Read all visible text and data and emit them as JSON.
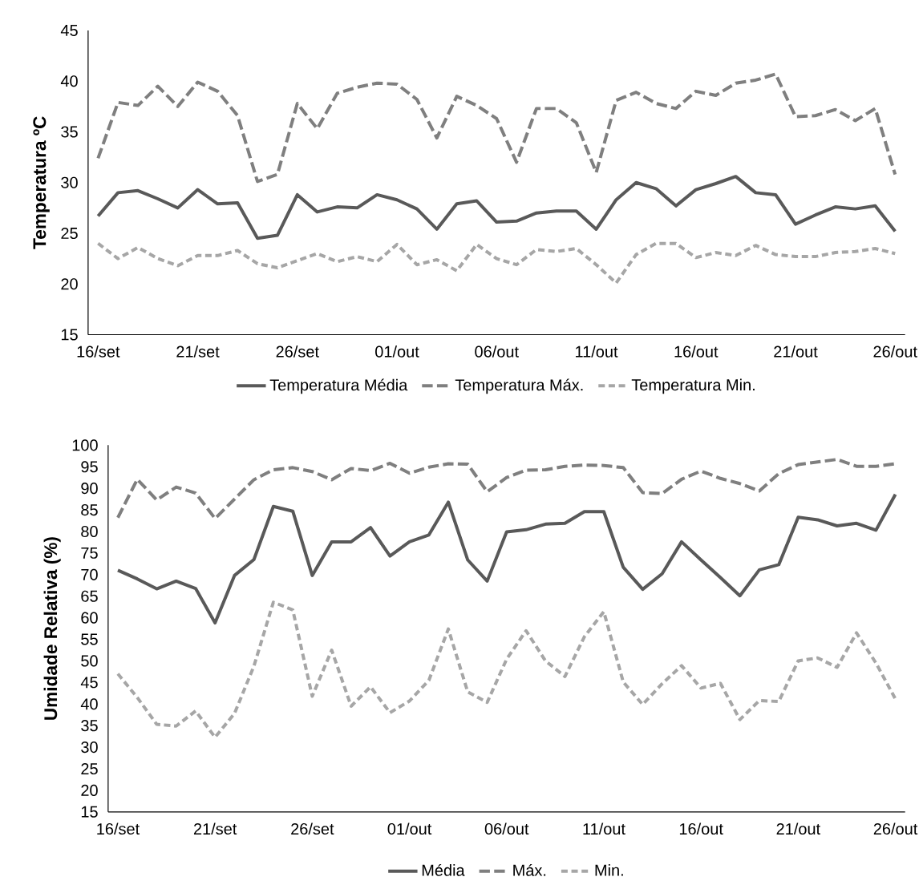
{
  "chart_data": [
    {
      "type": "line",
      "ylabel": "Temperatura ºC",
      "categories": [
        "16/set",
        null,
        null,
        null,
        null,
        "21/set",
        null,
        null,
        null,
        null,
        "26/set",
        null,
        null,
        null,
        null,
        "01/out",
        null,
        null,
        null,
        null,
        "06/out",
        null,
        null,
        null,
        null,
        "11/out",
        null,
        null,
        null,
        null,
        "16/out",
        null,
        null,
        null,
        null,
        "21/out",
        null,
        null,
        null,
        null,
        "26/out"
      ],
      "series": [
        {
          "name": "Temperatura  Média",
          "color": "#595959",
          "line_style": "solid",
          "values": [
            26.7,
            29.0,
            29.2,
            28.4,
            27.5,
            29.3,
            27.9,
            28.0,
            24.5,
            24.8,
            28.8,
            27.1,
            27.6,
            27.5,
            28.8,
            28.3,
            27.4,
            25.4,
            27.9,
            28.2,
            26.1,
            26.2,
            27.0,
            27.2,
            27.2,
            25.4,
            28.3,
            30.0,
            29.4,
            27.7,
            29.3,
            29.9,
            30.6,
            29.0,
            28.8,
            25.9,
            26.8,
            27.6,
            27.4,
            27.7,
            25.2
          ]
        },
        {
          "name": "Temperatura  Máx.",
          "color": "#7f7f7f",
          "line_style": "dashed",
          "values": [
            32.4,
            37.9,
            37.6,
            39.5,
            37.5,
            39.9,
            39.0,
            36.6,
            30.1,
            30.8,
            37.8,
            35.3,
            38.8,
            39.4,
            39.8,
            39.7,
            38.2,
            34.4,
            38.5,
            37.6,
            36.3,
            32.0,
            37.3,
            37.3,
            35.9,
            31.0,
            38.1,
            38.9,
            37.8,
            37.3,
            39.0,
            38.6,
            39.8,
            40.1,
            40.7,
            36.5,
            36.6,
            37.2,
            36.1,
            37.3,
            30.8
          ]
        },
        {
          "name": "Temperatura  Min.",
          "color": "#a6a6a6",
          "line_style": "dotted",
          "values": [
            24.0,
            22.5,
            23.6,
            22.5,
            21.8,
            22.8,
            22.8,
            23.3,
            22.0,
            21.6,
            22.3,
            23.0,
            22.2,
            22.7,
            22.2,
            23.9,
            21.9,
            22.4,
            21.3,
            23.9,
            22.5,
            21.9,
            23.4,
            23.2,
            23.5,
            21.9,
            20.1,
            22.9,
            24.0,
            24.0,
            22.6,
            23.1,
            22.8,
            23.8,
            22.9,
            22.7,
            22.7,
            23.1,
            23.2,
            23.5,
            23.0
          ]
        }
      ],
      "ylim": [
        15,
        45
      ],
      "yticks": [
        15,
        20,
        25,
        30,
        35,
        40,
        45
      ],
      "legend": "bottom",
      "marker": "none"
    },
    {
      "type": "line",
      "ylabel": "Umidade Relativa (%)",
      "categories": [
        "16/set",
        null,
        null,
        null,
        null,
        "21/set",
        null,
        null,
        null,
        null,
        "26/set",
        null,
        null,
        null,
        null,
        "01/out",
        null,
        null,
        null,
        null,
        "06/out",
        null,
        null,
        null,
        null,
        "11/out",
        null,
        null,
        null,
        null,
        "16/out",
        null,
        null,
        null,
        null,
        "21/out",
        null,
        null,
        null,
        null,
        "26/out"
      ],
      "series": [
        {
          "name": "Média",
          "color": "#595959",
          "line_style": "solid",
          "values": [
            71.0,
            69.0,
            66.7,
            68.5,
            66.8,
            58.8,
            69.8,
            73.5,
            85.8,
            84.7,
            69.8,
            77.6,
            77.6,
            80.9,
            74.3,
            77.6,
            79.2,
            86.8,
            73.4,
            68.5,
            79.9,
            80.4,
            81.7,
            81.9,
            84.6,
            84.6,
            71.7,
            66.6,
            70.2,
            77.6,
            73.4,
            69.3,
            65.1,
            71.1,
            72.3,
            83.3,
            82.7,
            81.3,
            81.9,
            80.3,
            88.6
          ]
        },
        {
          "name": "Máx.",
          "color": "#7f7f7f",
          "line_style": "dashed",
          "values": [
            83.2,
            92.1,
            87.3,
            90.3,
            88.9,
            83.0,
            87.5,
            92.0,
            94.3,
            94.8,
            93.9,
            92.0,
            94.6,
            94.1,
            95.8,
            93.5,
            94.9,
            95.7,
            95.6,
            89.2,
            92.5,
            94.2,
            94.3,
            95.1,
            95.4,
            95.3,
            94.8,
            89.0,
            88.8,
            92.1,
            94.0,
            92.3,
            91.1,
            89.4,
            93.4,
            95.5,
            96.1,
            96.7,
            95.1,
            95.1,
            95.7
          ]
        },
        {
          "name": "Min.",
          "color": "#a6a6a6",
          "line_style": "dotted",
          "values": [
            47.0,
            41.5,
            35.3,
            34.9,
            38.4,
            32.3,
            37.8,
            48.8,
            63.6,
            61.8,
            41.8,
            52.5,
            39.5,
            44.0,
            38.0,
            40.7,
            45.5,
            57.4,
            42.8,
            40.4,
            50.4,
            57.0,
            50.0,
            46.4,
            55.6,
            61.4,
            45.1,
            39.9,
            44.7,
            48.9,
            43.7,
            44.8,
            36.4,
            40.8,
            40.6,
            50.0,
            50.7,
            48.5,
            56.5,
            49.5,
            41.2
          ]
        }
      ],
      "ylim": [
        15,
        100
      ],
      "yticks": [
        15,
        20,
        25,
        30,
        35,
        40,
        45,
        50,
        55,
        60,
        65,
        70,
        75,
        80,
        85,
        90,
        95,
        100
      ],
      "legend": "bottom",
      "marker": "none"
    }
  ]
}
